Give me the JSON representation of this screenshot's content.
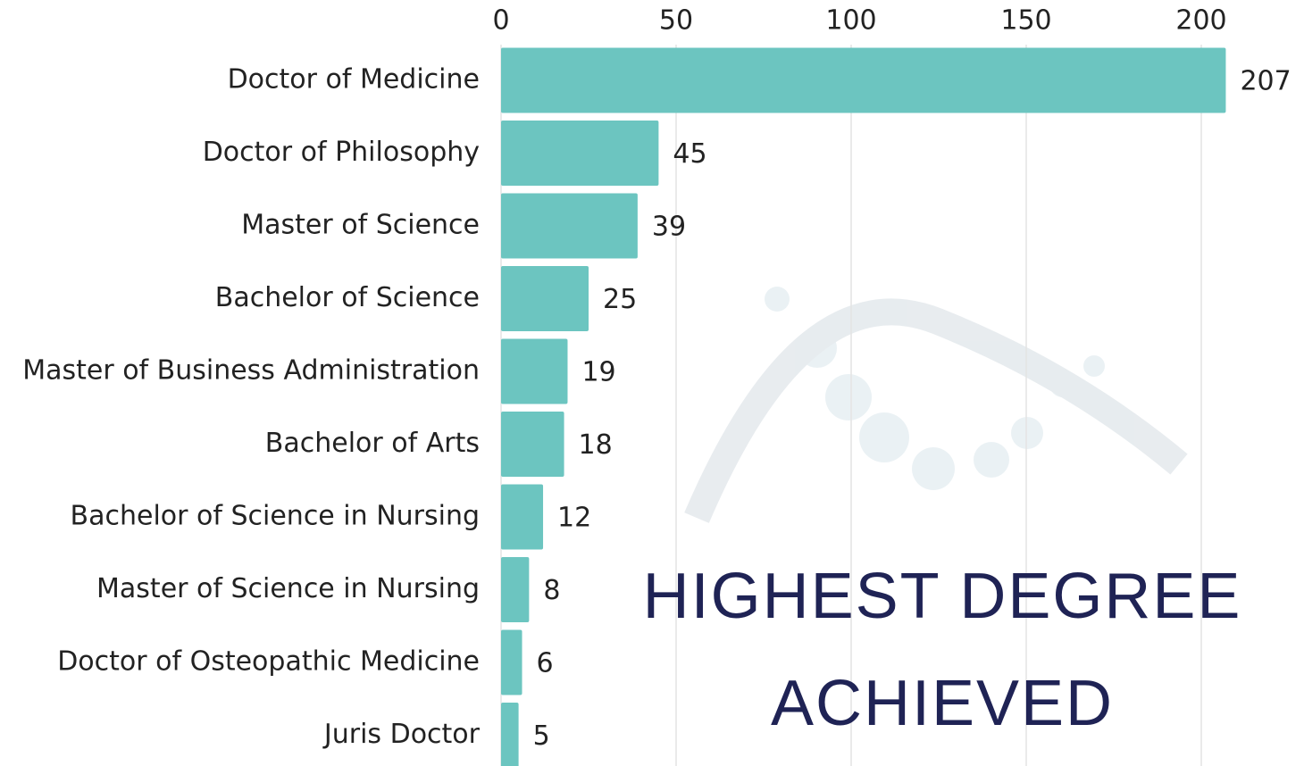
{
  "chart_data": {
    "type": "hbar",
    "title": "HIGHEST DEGREE ACHIEVED",
    "categories": [
      "Doctor of Medicine",
      "Doctor of Philosophy",
      "Master of Science",
      "Bachelor of Science",
      "Master of Business Administration",
      "Bachelor of Arts",
      "Bachelor of Science in Nursing",
      "Master of Science in Nursing",
      "Doctor of Osteopathic Medicine",
      "Juris Doctor"
    ],
    "values": [
      207,
      45,
      39,
      25,
      19,
      18,
      12,
      8,
      6,
      5
    ],
    "color": "#6cc5c0",
    "xlim": [
      0,
      220
    ],
    "xticks": [
      0,
      50,
      100,
      150,
      200
    ],
    "grid": true
  }
}
